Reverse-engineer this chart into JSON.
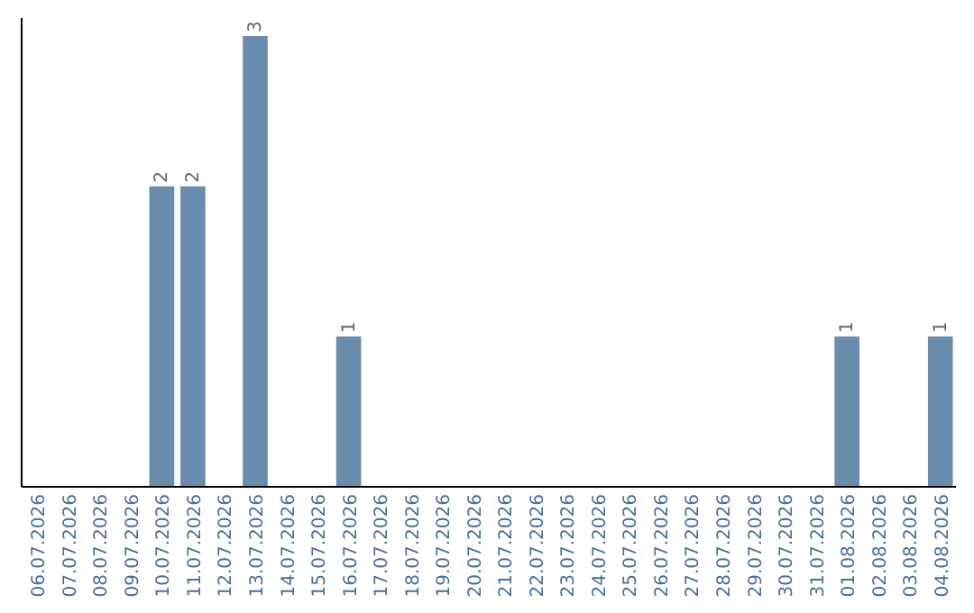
{
  "chart_data": {
    "type": "bar",
    "categories": [
      "06.07.2026",
      "07.07.2026",
      "08.07.2026",
      "09.07.2026",
      "10.07.2026",
      "11.07.2026",
      "12.07.2026",
      "13.07.2026",
      "14.07.2026",
      "15.07.2026",
      "16.07.2026",
      "17.07.2026",
      "18.07.2026",
      "19.07.2026",
      "20.07.2026",
      "21.07.2026",
      "22.07.2026",
      "23.07.2026",
      "24.07.2026",
      "25.07.2026",
      "26.07.2026",
      "27.07.2026",
      "28.07.2026",
      "29.07.2026",
      "30.07.2026",
      "31.07.2026",
      "01.08.2026",
      "02.08.2026",
      "03.08.2026",
      "04.08.2026"
    ],
    "values": [
      0,
      0,
      0,
      0,
      2,
      2,
      0,
      3,
      0,
      0,
      1,
      0,
      0,
      0,
      0,
      0,
      0,
      0,
      0,
      0,
      0,
      0,
      0,
      0,
      0,
      0,
      1,
      0,
      0,
      1
    ],
    "value_labels": [
      null,
      null,
      null,
      null,
      "2",
      "2",
      null,
      "3",
      null,
      null,
      "1",
      null,
      null,
      null,
      null,
      null,
      null,
      null,
      null,
      null,
      null,
      null,
      null,
      null,
      null,
      null,
      "1",
      null,
      null,
      "1"
    ],
    "color": "#6a8cad",
    "ylim": [
      0,
      3.12
    ],
    "tick_labels": "x"
  }
}
